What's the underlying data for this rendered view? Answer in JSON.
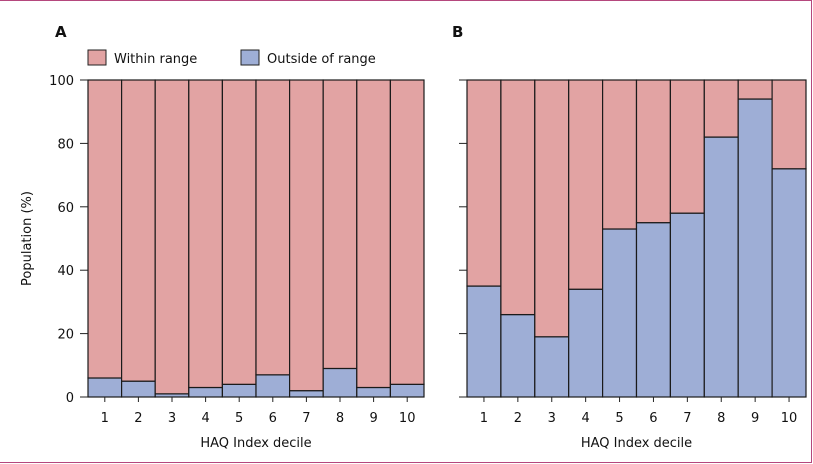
{
  "legend": [
    {
      "label": "Within range",
      "color": "#e2a3a3"
    },
    {
      "label": "Outside of range",
      "color": "#9eaed6"
    }
  ],
  "chart_data": [
    {
      "panel": "A",
      "type": "bar",
      "stacked": true,
      "categories": [
        "1",
        "2",
        "3",
        "4",
        "5",
        "6",
        "7",
        "8",
        "9",
        "10"
      ],
      "series": [
        {
          "name": "Outside of range",
          "color": "#9eaed6",
          "values": [
            6,
            5,
            1,
            3,
            4,
            7,
            2,
            9,
            3,
            4
          ]
        },
        {
          "name": "Within range",
          "color": "#e2a3a3",
          "values": [
            94,
            95,
            99,
            97,
            96,
            93,
            98,
            91,
            97,
            96
          ]
        }
      ],
      "xlabel": "HAQ Index decile",
      "ylabel": "Population (%)",
      "ylim": [
        0,
        100
      ],
      "yticks": [
        0,
        20,
        40,
        60,
        80,
        100
      ],
      "grid": false
    },
    {
      "panel": "B",
      "type": "bar",
      "stacked": true,
      "categories": [
        "1",
        "2",
        "3",
        "4",
        "5",
        "6",
        "7",
        "8",
        "9",
        "10"
      ],
      "series": [
        {
          "name": "Outside of range",
          "color": "#9eaed6",
          "values": [
            35,
            26,
            19,
            34,
            53,
            55,
            58,
            82,
            94,
            72
          ]
        },
        {
          "name": "Within range",
          "color": "#e2a3a3",
          "values": [
            65,
            74,
            81,
            66,
            47,
            45,
            42,
            18,
            6,
            28
          ]
        }
      ],
      "xlabel": "HAQ Index decile",
      "ylabel": "",
      "ylim": [
        0,
        100
      ],
      "yticks": [
        0,
        20,
        40,
        60,
        80,
        100
      ],
      "grid": false
    }
  ]
}
